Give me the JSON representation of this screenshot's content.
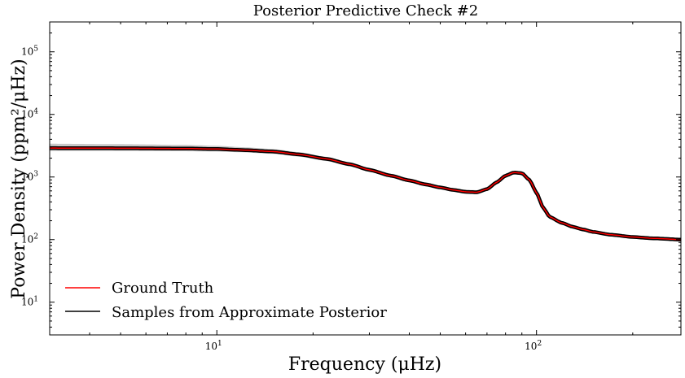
{
  "chart_data": {
    "type": "line",
    "title": "Posterior Predictive Check #2",
    "xlabel": "Frequency (μHz)",
    "ylabel": "Power Density (ppm²/μHz)",
    "xscale": "log",
    "yscale": "log",
    "xlim": [
      3.0,
      283.0
    ],
    "ylim": [
      3.0,
      300000.0
    ],
    "grid": false,
    "legend_position": "lower-left",
    "x_ticks": [
      {
        "value": 10,
        "label_base": "10",
        "label_exp": "1"
      },
      {
        "value": 100,
        "label_base": "10",
        "label_exp": "2"
      }
    ],
    "y_ticks": [
      {
        "value": 10,
        "label_base": "10",
        "label_exp": "1"
      },
      {
        "value": 100,
        "label_base": "10",
        "label_exp": "2"
      },
      {
        "value": 1000,
        "label_base": "10",
        "label_exp": "3"
      },
      {
        "value": 10000,
        "label_base": "10",
        "label_exp": "4"
      },
      {
        "value": 100000,
        "label_base": "10",
        "label_exp": "5"
      }
    ],
    "series": [
      {
        "name": "Ground Truth",
        "color": "#ff0000",
        "x": [
          3,
          5,
          8,
          10,
          12,
          15,
          18,
          22,
          26,
          30,
          35,
          40,
          45,
          50,
          55,
          60,
          65,
          70,
          75,
          80,
          85,
          90,
          95,
          100,
          105,
          110,
          120,
          130,
          140,
          150,
          170,
          200,
          230,
          283
        ],
        "y": [
          2900,
          2880,
          2850,
          2800,
          2700,
          2550,
          2300,
          1950,
          1600,
          1300,
          1050,
          880,
          760,
          680,
          620,
          580,
          570,
          640,
          820,
          1050,
          1180,
          1150,
          900,
          560,
          320,
          230,
          185,
          160,
          145,
          133,
          120,
          110,
          105,
          100
        ]
      },
      {
        "name": "Samples from Approximate Posterior",
        "color": "#000000",
        "x": [
          3,
          5,
          8,
          10,
          12,
          15,
          18,
          22,
          26,
          30,
          35,
          40,
          45,
          50,
          55,
          60,
          65,
          70,
          75,
          80,
          85,
          90,
          95,
          100,
          105,
          110,
          120,
          130,
          140,
          150,
          170,
          200,
          230,
          283
        ],
        "y": [
          2900,
          2880,
          2850,
          2800,
          2700,
          2550,
          2300,
          1950,
          1600,
          1300,
          1050,
          880,
          760,
          680,
          620,
          580,
          570,
          640,
          820,
          1050,
          1180,
          1150,
          900,
          560,
          320,
          230,
          185,
          160,
          145,
          133,
          120,
          110,
          105,
          100
        ],
        "band_upper": [
          3400,
          3350,
          3250,
          3150,
          3000,
          2800,
          2500,
          2100,
          1720,
          1400,
          1130,
          950,
          820,
          730,
          665,
          625,
          615,
          680,
          860,
          1100,
          1240,
          1210,
          950,
          590,
          335,
          240,
          192,
          166,
          150,
          137,
          124,
          113,
          107,
          102
        ],
        "band_lower": [
          2600,
          2600,
          2580,
          2550,
          2480,
          2340,
          2120,
          1800,
          1480,
          1210,
          980,
          820,
          710,
          635,
          580,
          540,
          535,
          605,
          780,
          1000,
          1120,
          1090,
          855,
          530,
          305,
          220,
          178,
          154,
          140,
          129,
          116,
          107,
          103,
          98
        ]
      }
    ],
    "legend": [
      {
        "label": "Ground Truth",
        "color": "#ff0000"
      },
      {
        "label": "Samples from Approximate Posterior",
        "color": "#000000"
      }
    ]
  }
}
